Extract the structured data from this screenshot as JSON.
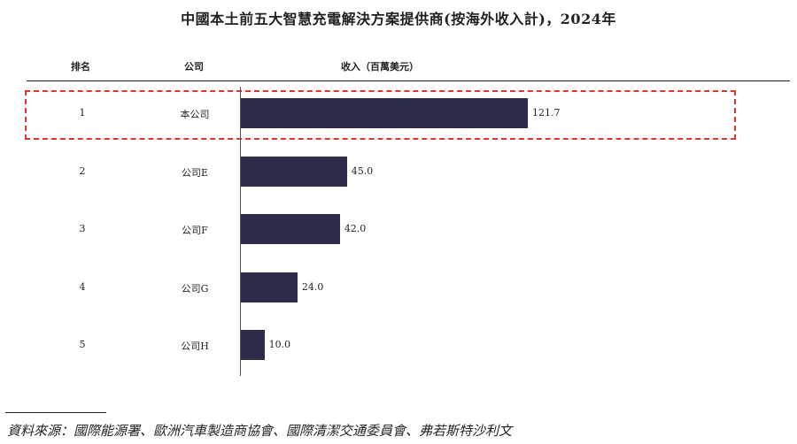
{
  "title": "中國本土前五大智慧充電解決方案提供商(按海外收入計)，2024年",
  "headers": {
    "rank": "排名",
    "company": "公司",
    "revenue": "收入（百萬美元）"
  },
  "chart_data": {
    "type": "bar",
    "orientation": "horizontal",
    "categories": [
      "本公司",
      "公司E",
      "公司F",
      "公司G",
      "公司H"
    ],
    "ranks": [
      "1",
      "2",
      "3",
      "4",
      "5"
    ],
    "values": [
      121.7,
      45.0,
      42.0,
      24.0,
      10.0
    ],
    "value_labels": [
      "121.7",
      "45.0",
      "42.0",
      "24.0",
      "10.0"
    ],
    "title": "中國本土前五大智慧充電解決方案提供商(按海外收入計)，2024年",
    "xlabel": "收入（百萬美元）",
    "ylabel": "",
    "highlight_index": 0
  },
  "colors": {
    "bar": "#2e2c4b",
    "highlight_border": "#e4322f"
  },
  "source": "資料來源：國際能源署、歐洲汽車製造商協會、國際清潔交通委員會、弗若斯特沙利文"
}
